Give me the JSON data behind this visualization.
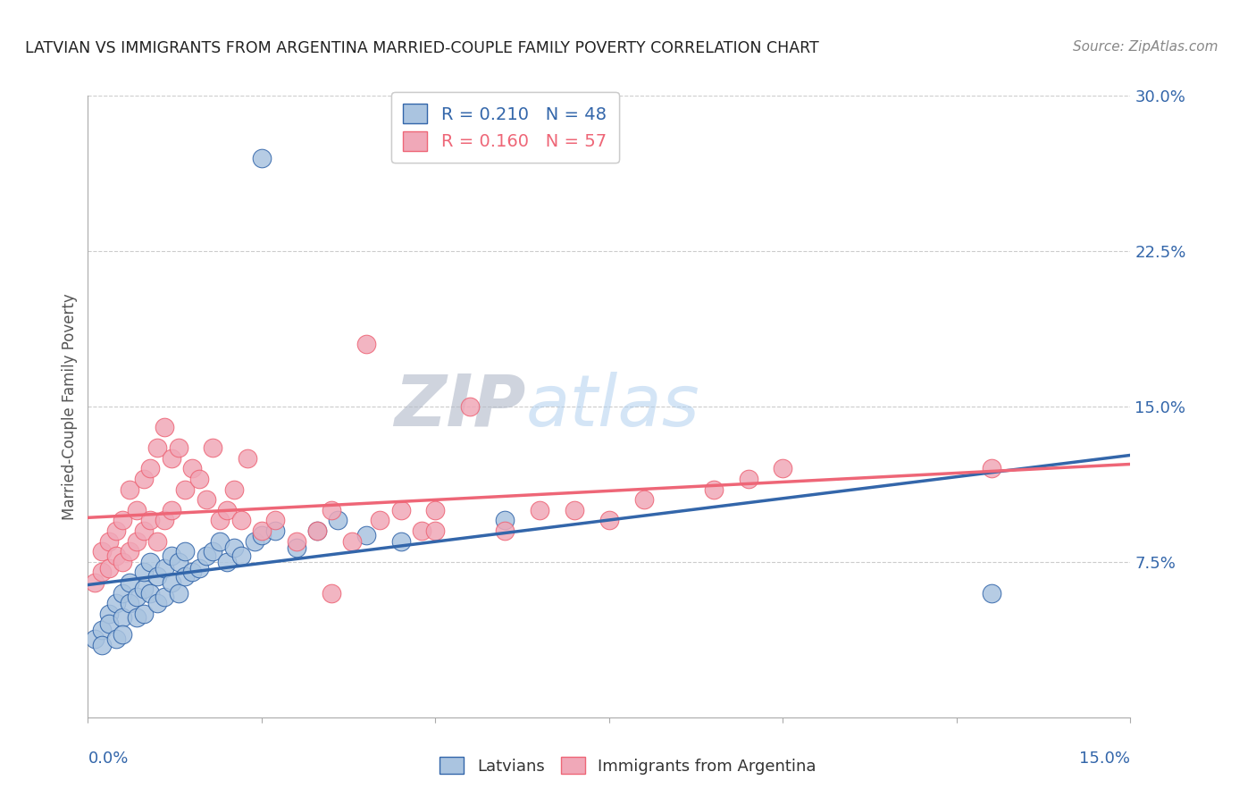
{
  "title": "LATVIAN VS IMMIGRANTS FROM ARGENTINA MARRIED-COUPLE FAMILY POVERTY CORRELATION CHART",
  "source": "Source: ZipAtlas.com",
  "ylabel": "Married-Couple Family Poverty",
  "y_ticks": [
    0.0,
    0.075,
    0.15,
    0.225,
    0.3
  ],
  "y_tick_labels": [
    "",
    "7.5%",
    "15.0%",
    "22.5%",
    "30.0%"
  ],
  "x_range": [
    0.0,
    0.15
  ],
  "y_range": [
    0.0,
    0.3
  ],
  "latvian_R": 0.21,
  "latvian_N": 48,
  "argentina_R": 0.16,
  "argentina_N": 57,
  "blue_color": "#aac4e0",
  "pink_color": "#f0a8b8",
  "blue_line_color": "#3366aa",
  "pink_line_color": "#ee6677",
  "title_color": "#222222",
  "background_color": "#ffffff",
  "latvian_x": [
    0.001,
    0.002,
    0.002,
    0.003,
    0.003,
    0.004,
    0.004,
    0.005,
    0.005,
    0.005,
    0.006,
    0.006,
    0.007,
    0.007,
    0.008,
    0.008,
    0.008,
    0.009,
    0.009,
    0.01,
    0.01,
    0.011,
    0.011,
    0.012,
    0.012,
    0.013,
    0.013,
    0.014,
    0.014,
    0.015,
    0.016,
    0.017,
    0.018,
    0.019,
    0.02,
    0.021,
    0.022,
    0.024,
    0.025,
    0.027,
    0.03,
    0.033,
    0.036,
    0.04,
    0.045,
    0.06,
    0.025,
    0.13
  ],
  "latvian_y": [
    0.038,
    0.042,
    0.035,
    0.05,
    0.045,
    0.038,
    0.055,
    0.048,
    0.06,
    0.04,
    0.055,
    0.065,
    0.048,
    0.058,
    0.05,
    0.062,
    0.07,
    0.06,
    0.075,
    0.055,
    0.068,
    0.058,
    0.072,
    0.065,
    0.078,
    0.06,
    0.075,
    0.068,
    0.08,
    0.07,
    0.072,
    0.078,
    0.08,
    0.085,
    0.075,
    0.082,
    0.078,
    0.085,
    0.088,
    0.09,
    0.082,
    0.09,
    0.095,
    0.088,
    0.085,
    0.095,
    0.27,
    0.06
  ],
  "argentina_x": [
    0.001,
    0.002,
    0.002,
    0.003,
    0.003,
    0.004,
    0.004,
    0.005,
    0.005,
    0.006,
    0.006,
    0.007,
    0.007,
    0.008,
    0.008,
    0.009,
    0.009,
    0.01,
    0.01,
    0.011,
    0.011,
    0.012,
    0.012,
    0.013,
    0.014,
    0.015,
    0.016,
    0.017,
    0.018,
    0.019,
    0.02,
    0.021,
    0.022,
    0.023,
    0.025,
    0.027,
    0.03,
    0.033,
    0.035,
    0.038,
    0.04,
    0.042,
    0.045,
    0.048,
    0.05,
    0.055,
    0.06,
    0.065,
    0.07,
    0.075,
    0.08,
    0.09,
    0.095,
    0.1,
    0.035,
    0.05,
    0.13
  ],
  "argentina_y": [
    0.065,
    0.07,
    0.08,
    0.072,
    0.085,
    0.078,
    0.09,
    0.075,
    0.095,
    0.08,
    0.11,
    0.085,
    0.1,
    0.09,
    0.115,
    0.095,
    0.12,
    0.085,
    0.13,
    0.095,
    0.14,
    0.1,
    0.125,
    0.13,
    0.11,
    0.12,
    0.115,
    0.105,
    0.13,
    0.095,
    0.1,
    0.11,
    0.095,
    0.125,
    0.09,
    0.095,
    0.085,
    0.09,
    0.1,
    0.085,
    0.18,
    0.095,
    0.1,
    0.09,
    0.1,
    0.15,
    0.09,
    0.1,
    0.1,
    0.095,
    0.105,
    0.11,
    0.115,
    0.12,
    0.06,
    0.09,
    0.12
  ]
}
